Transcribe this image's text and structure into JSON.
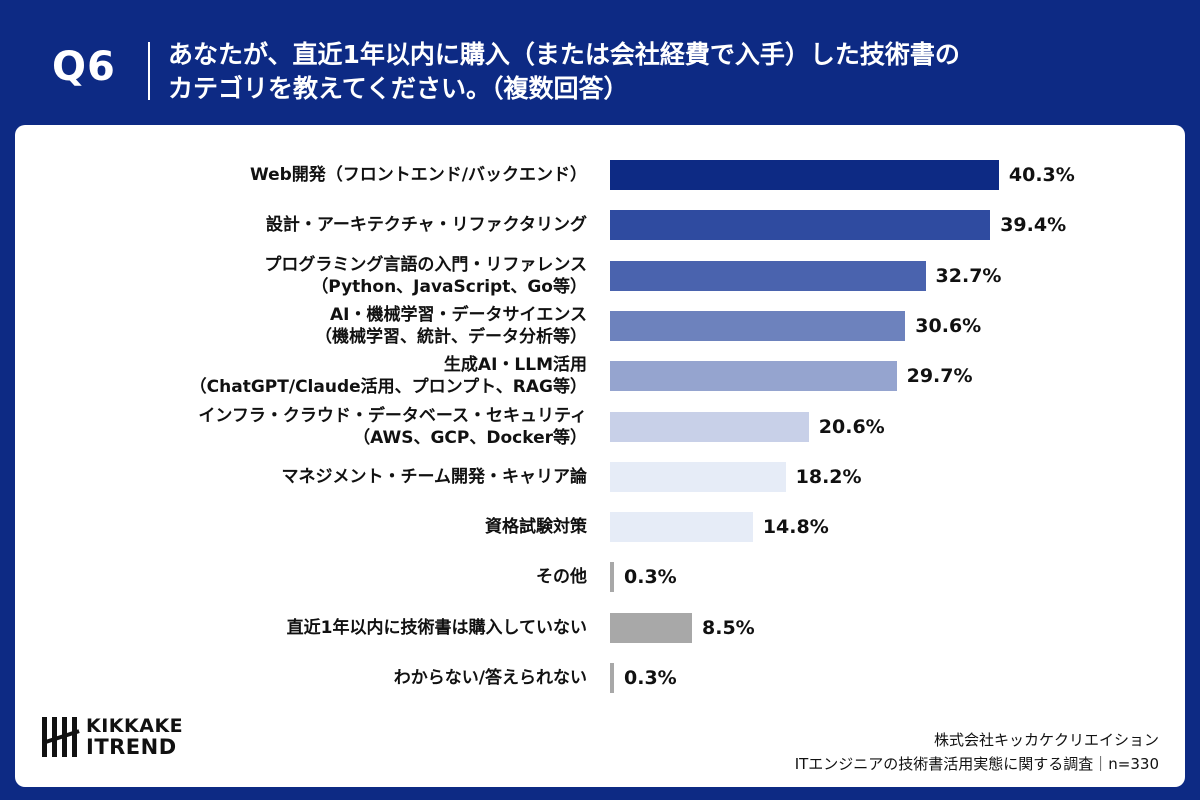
{
  "header": {
    "qnum": "Q6",
    "question_line1": "あなたが、直近1年以内に購入（または会社経費で入手）した技術書の",
    "question_line2": "カテゴリを教えてください。（複数回答）"
  },
  "chart_data": {
    "type": "bar",
    "orientation": "horizontal",
    "categories": [
      [
        "Web開発（フロントエンド/バックエンド）"
      ],
      [
        "設計・アーキテクチャ・リファクタリング"
      ],
      [
        "プログラミング言語の入門・リファレンス",
        "（Python、JavaScript、Go等）"
      ],
      [
        "AI・機械学習・データサイエンス",
        "（機械学習、統計、データ分析等）"
      ],
      [
        "生成AI・LLM活用",
        "（ChatGPT/Claude活用、プロンプト、RAG等）"
      ],
      [
        "インフラ・クラウド・データベース・セキュリティ",
        "（AWS、GCP、Docker等）"
      ],
      [
        "マネジメント・チーム開発・キャリア論"
      ],
      [
        "資格試験対策"
      ],
      [
        "その他"
      ],
      [
        "直近1年以内に技術書は購入していない"
      ],
      [
        "わからない/答えられない"
      ]
    ],
    "values": [
      40.3,
      39.4,
      32.7,
      30.6,
      29.7,
      20.6,
      18.2,
      14.8,
      0.3,
      8.5,
      0.3
    ],
    "value_labels": [
      "40.3%",
      "39.4%",
      "32.7%",
      "30.6%",
      "29.7%",
      "20.6%",
      "18.2%",
      "14.8%",
      "0.3%",
      "8.5%",
      "0.3%"
    ],
    "colors": [
      "#0d2a84",
      "#2f4ba0",
      "#4a63ae",
      "#6d82bd",
      "#95a4cf",
      "#c8d0e8",
      "#e6ecf7",
      "#e6ecf7",
      "#a8a8a8",
      "#a8a8a8",
      "#a8a8a8"
    ],
    "xlim": [
      0,
      45
    ],
    "grid": false,
    "legend": "none"
  },
  "footer": {
    "logo_line1": "KIKKAKE",
    "logo_line2": "ITREND",
    "company": "株式会社キッカケクリエイション",
    "survey": "ITエンジニアの技術書活用実態に関する調査｜n=330"
  }
}
